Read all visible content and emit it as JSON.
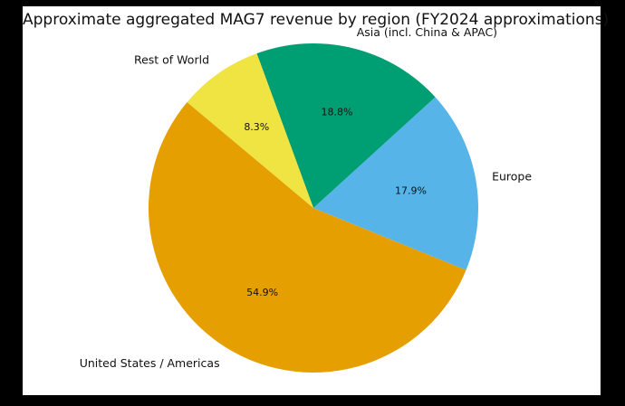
{
  "frame": {
    "background_color": "#000000",
    "panel_color": "#ffffff",
    "text_color": "#111111"
  },
  "chart_data": {
    "type": "pie",
    "title": "Approximate aggregated MAG7 revenue by region (FY2024 approximations)",
    "legend_position": "none",
    "start_angle_deg": 140,
    "direction": "counterclockwise",
    "pct_label_distance": 0.6,
    "category_label_distance": 1.1,
    "slices": [
      {
        "label": "United States / Americas",
        "pct": 54.9,
        "pct_label": "54.9%",
        "color": "#E69F00"
      },
      {
        "label": "Europe",
        "pct": 17.9,
        "pct_label": "17.9%",
        "color": "#56B4E9"
      },
      {
        "label": "Asia (incl. China & APAC)",
        "pct": 18.8,
        "pct_label": "18.8%",
        "color": "#009E73"
      },
      {
        "label": "Rest of World",
        "pct": 8.3,
        "pct_label": "8.3%",
        "color": "#F0E442"
      }
    ]
  }
}
